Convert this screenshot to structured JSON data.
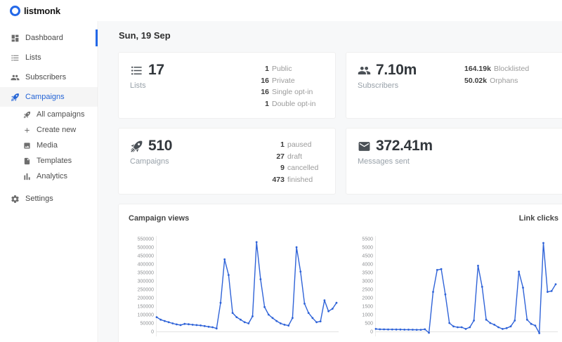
{
  "topbar": {
    "brand": "listmonk"
  },
  "sidebar": {
    "items": [
      {
        "label": "Dashboard",
        "icon": "dashboard-icon",
        "active": true
      },
      {
        "label": "Lists",
        "icon": "lists-icon"
      },
      {
        "label": "Subscribers",
        "icon": "subscribers-icon"
      },
      {
        "label": "Campaigns",
        "icon": "rocket-icon",
        "selected": true
      },
      {
        "label": "Settings",
        "icon": "gear-icon"
      }
    ],
    "campaigns_submenu": [
      {
        "label": "All campaigns",
        "icon": "rocket-icon"
      },
      {
        "label": "Create new",
        "icon": "plus-icon"
      },
      {
        "label": "Media",
        "icon": "image-icon"
      },
      {
        "label": "Templates",
        "icon": "file-icon"
      },
      {
        "label": "Analytics",
        "icon": "bar-chart-icon"
      }
    ]
  },
  "header": {
    "date": "Sun, 19 Sep"
  },
  "cards": {
    "lists": {
      "icon": "lists-icon",
      "value": "17",
      "label": "Lists",
      "stats": [
        {
          "num": "1",
          "label": "Public"
        },
        {
          "num": "16",
          "label": "Private"
        },
        {
          "num": "16",
          "label": "Single opt-in"
        },
        {
          "num": "1",
          "label": "Double opt-in"
        }
      ]
    },
    "subscribers": {
      "icon": "subscribers-icon",
      "value": "7.10m",
      "label": "Subscribers",
      "stats": [
        {
          "num": "164.19k",
          "label": "Blocklisted"
        },
        {
          "num": "50.02k",
          "label": "Orphans"
        }
      ]
    },
    "campaigns": {
      "icon": "rocket-icon",
      "value": "510",
      "label": "Campaigns",
      "stats": [
        {
          "num": "1",
          "label": "paused"
        },
        {
          "num": "27",
          "label": "draft"
        },
        {
          "num": "9",
          "label": "cancelled"
        },
        {
          "num": "473",
          "label": "finished"
        }
      ]
    },
    "messages": {
      "icon": "envelope-icon",
      "value": "372.41m",
      "label": "Messages sent"
    }
  },
  "chart_data": [
    {
      "type": "line",
      "title": "Campaign views",
      "xlabel": "",
      "ylabel": "",
      "ylim": [
        0,
        550000
      ],
      "yticks": [
        "550000",
        "500000",
        "450000",
        "400000",
        "350000",
        "300000",
        "250000",
        "200000",
        "150000",
        "100000",
        "50000",
        "0"
      ],
      "grid": false,
      "legend": "none",
      "line_color": "#2f63d8",
      "values": [
        85000,
        70000,
        62000,
        55000,
        48000,
        42000,
        38000,
        45000,
        43000,
        40000,
        38000,
        36000,
        32000,
        28000,
        25000,
        18000,
        170000,
        428000,
        335000,
        110000,
        85000,
        70000,
        55000,
        48000,
        90000,
        530000,
        310000,
        145000,
        100000,
        80000,
        62000,
        48000,
        40000,
        35000,
        80000,
        500000,
        355000,
        165000,
        110000,
        80000,
        55000,
        60000,
        185000,
        120000,
        135000,
        170000
      ]
    },
    {
      "type": "line",
      "title": "Link clicks",
      "xlabel": "",
      "ylabel": "",
      "ylim": [
        0,
        5500
      ],
      "yticks": [
        "5500",
        "5000",
        "4500",
        "4000",
        "3500",
        "3000",
        "2500",
        "2000",
        "1500",
        "1000",
        "500",
        "0"
      ],
      "grid": false,
      "legend": "none",
      "line_color": "#2f63d8",
      "values": [
        150,
        130,
        125,
        120,
        120,
        115,
        115,
        110,
        110,
        105,
        100,
        100,
        130,
        -80,
        2350,
        3650,
        3700,
        2200,
        500,
        300,
        250,
        250,
        150,
        250,
        650,
        3900,
        2650,
        700,
        500,
        400,
        250,
        150,
        200,
        300,
        650,
        3550,
        2600,
        700,
        450,
        350,
        -100,
        5250,
        2350,
        2400,
        2800
      ]
    }
  ],
  "colors": {
    "primary_blue": "#2368e8",
    "chart_line": "#2f63d8",
    "main_bg": "#f7f8f9",
    "sidebar_active_bg": "#f5f5f5"
  }
}
